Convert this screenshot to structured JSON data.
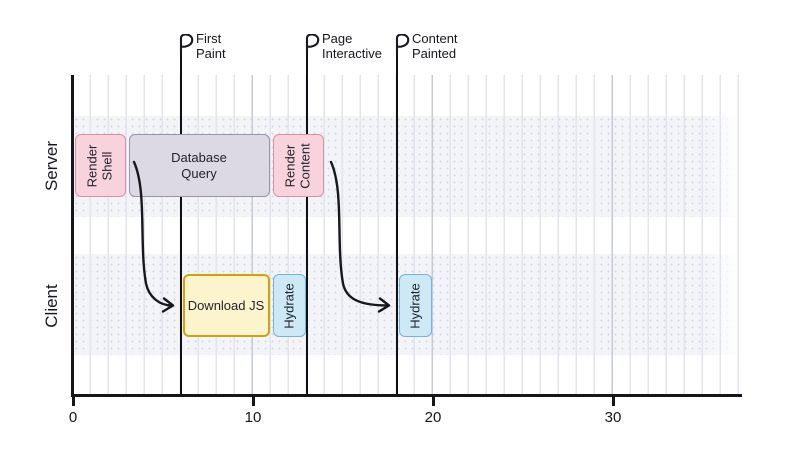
{
  "chart_data": {
    "type": "bar",
    "variant": "gantt-timeline",
    "xlabel": "",
    "ylabel": "",
    "x_ticks": [
      0,
      10,
      20,
      30
    ],
    "x_range": [
      0,
      37
    ],
    "grid": {
      "vertical_minor_every": 1,
      "vertical_major_every": 10,
      "horizontal": false
    },
    "lanes": [
      {
        "label": "Server",
        "tasks": [
          {
            "id": "render-shell",
            "label": "Render Shell",
            "label_lines": [
              "Render",
              "Shell"
            ],
            "start": 0,
            "end": 3,
            "style": "pink",
            "rotated": true
          },
          {
            "id": "db-query",
            "label": "Database Query",
            "label_lines": [
              "Database",
              "Query"
            ],
            "start": 3,
            "end": 11,
            "style": "lavender",
            "rotated": false
          },
          {
            "id": "render-content",
            "label": "Render Content",
            "label_lines": [
              "Render",
              "Content"
            ],
            "start": 11,
            "end": 14,
            "style": "pink",
            "rotated": true
          }
        ]
      },
      {
        "label": "Client",
        "tasks": [
          {
            "id": "download-js",
            "label": "Download JS",
            "label_lines": [
              "Download JS"
            ],
            "start": 6,
            "end": 11,
            "style": "yellow",
            "rotated": false
          },
          {
            "id": "hydrate-1",
            "label": "Hydrate",
            "label_lines": [
              "Hydrate"
            ],
            "start": 11,
            "end": 13,
            "style": "blue",
            "rotated": true
          },
          {
            "id": "hydrate-2",
            "label": "Hydrate",
            "label_lines": [
              "Hydrate"
            ],
            "start": 18,
            "end": 20,
            "style": "blue",
            "rotated": true
          }
        ]
      }
    ],
    "milestones": [
      {
        "id": "first-paint",
        "label": "First Paint",
        "label_lines": [
          "First",
          "Paint"
        ],
        "t": 6
      },
      {
        "id": "page-interactive",
        "label": "Page Interactive",
        "label_lines": [
          "Page",
          "Interactive"
        ],
        "t": 13
      },
      {
        "id": "content-painted",
        "label": "Content Painted",
        "label_lines": [
          "Content",
          "Painted"
        ],
        "t": 18
      }
    ],
    "arrows": [
      {
        "from": "db-query",
        "to": "download-js"
      },
      {
        "from": "render-content",
        "to": "hydrate-2"
      }
    ],
    "colors": {
      "ink": "#17171d",
      "pink_fill": "#f8d2dc",
      "pink_border": "#db91a4",
      "lavender_fill": "#dcd8e4",
      "lavender_border": "#9a93a9",
      "yellow_fill": "#fcf4cc",
      "yellow_border": "#cda50a",
      "blue_fill": "#cde9f6",
      "blue_border": "#79b2d2",
      "band_bg": "#f3f4f8",
      "band_dots": "#d4d7e2",
      "grid_minor": "#e3e5ee",
      "grid_major": "#c7cbd8"
    }
  }
}
